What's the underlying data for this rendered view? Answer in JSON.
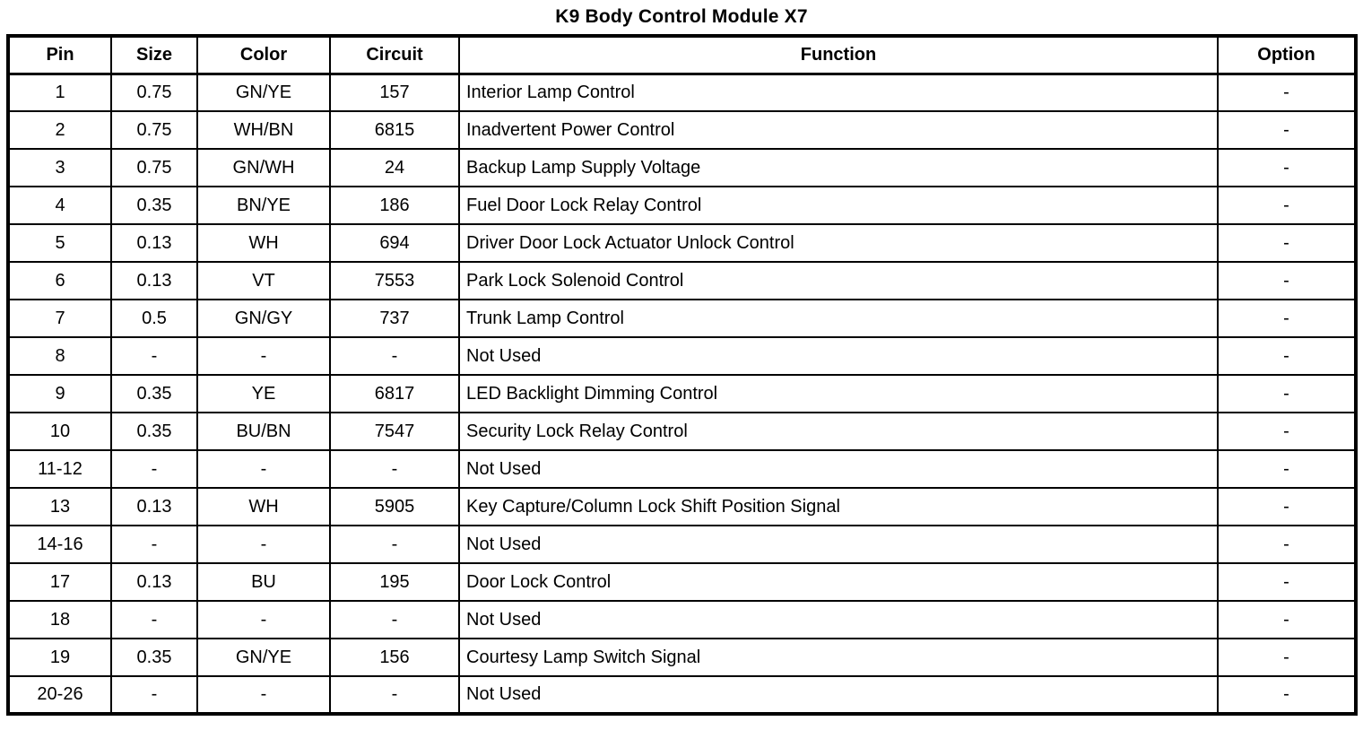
{
  "title": "K9 Body Control Module X7",
  "table": {
    "headers": {
      "pin": "Pin",
      "size": "Size",
      "color": "Color",
      "circuit": "Circuit",
      "function": "Function",
      "option": "Option"
    },
    "rows": [
      [
        "1",
        "0.75",
        "GN/YE",
        "157",
        "Interior Lamp Control",
        "-"
      ],
      [
        "2",
        "0.75",
        "WH/BN",
        "6815",
        "Inadvertent Power Control",
        "-"
      ],
      [
        "3",
        "0.75",
        "GN/WH",
        "24",
        "Backup Lamp Supply Voltage",
        "-"
      ],
      [
        "4",
        "0.35",
        "BN/YE",
        "186",
        "Fuel Door Lock Relay Control",
        "-"
      ],
      [
        "5",
        "0.13",
        "WH",
        "694",
        "Driver Door Lock Actuator Unlock Control",
        "-"
      ],
      [
        "6",
        "0.13",
        "VT",
        "7553",
        "Park Lock Solenoid Control",
        "-"
      ],
      [
        "7",
        "0.5",
        "GN/GY",
        "737",
        "Trunk Lamp Control",
        "-"
      ],
      [
        "8",
        "-",
        "-",
        "-",
        "Not Used",
        "-"
      ],
      [
        "9",
        "0.35",
        "YE",
        "6817",
        "LED Backlight Dimming Control",
        "-"
      ],
      [
        "10",
        "0.35",
        "BU/BN",
        "7547",
        "Security Lock Relay Control",
        "-"
      ],
      [
        "11-12",
        "-",
        "-",
        "-",
        "Not Used",
        "-"
      ],
      [
        "13",
        "0.13",
        "WH",
        "5905",
        "Key Capture/Column Lock Shift Position Signal",
        "-"
      ],
      [
        "14-16",
        "-",
        "-",
        "-",
        "Not Used",
        "-"
      ],
      [
        "17",
        "0.13",
        "BU",
        "195",
        "Door Lock Control",
        "-"
      ],
      [
        "18",
        "-",
        "-",
        "-",
        "Not Used",
        "-"
      ],
      [
        "19",
        "0.35",
        "GN/YE",
        "156",
        "Courtesy Lamp Switch Signal",
        "-"
      ],
      [
        "20-26",
        "-",
        "-",
        "-",
        "Not Used",
        "-"
      ]
    ]
  },
  "colors": {
    "text": "#000000",
    "border": "#000000",
    "background": "#ffffff"
  }
}
